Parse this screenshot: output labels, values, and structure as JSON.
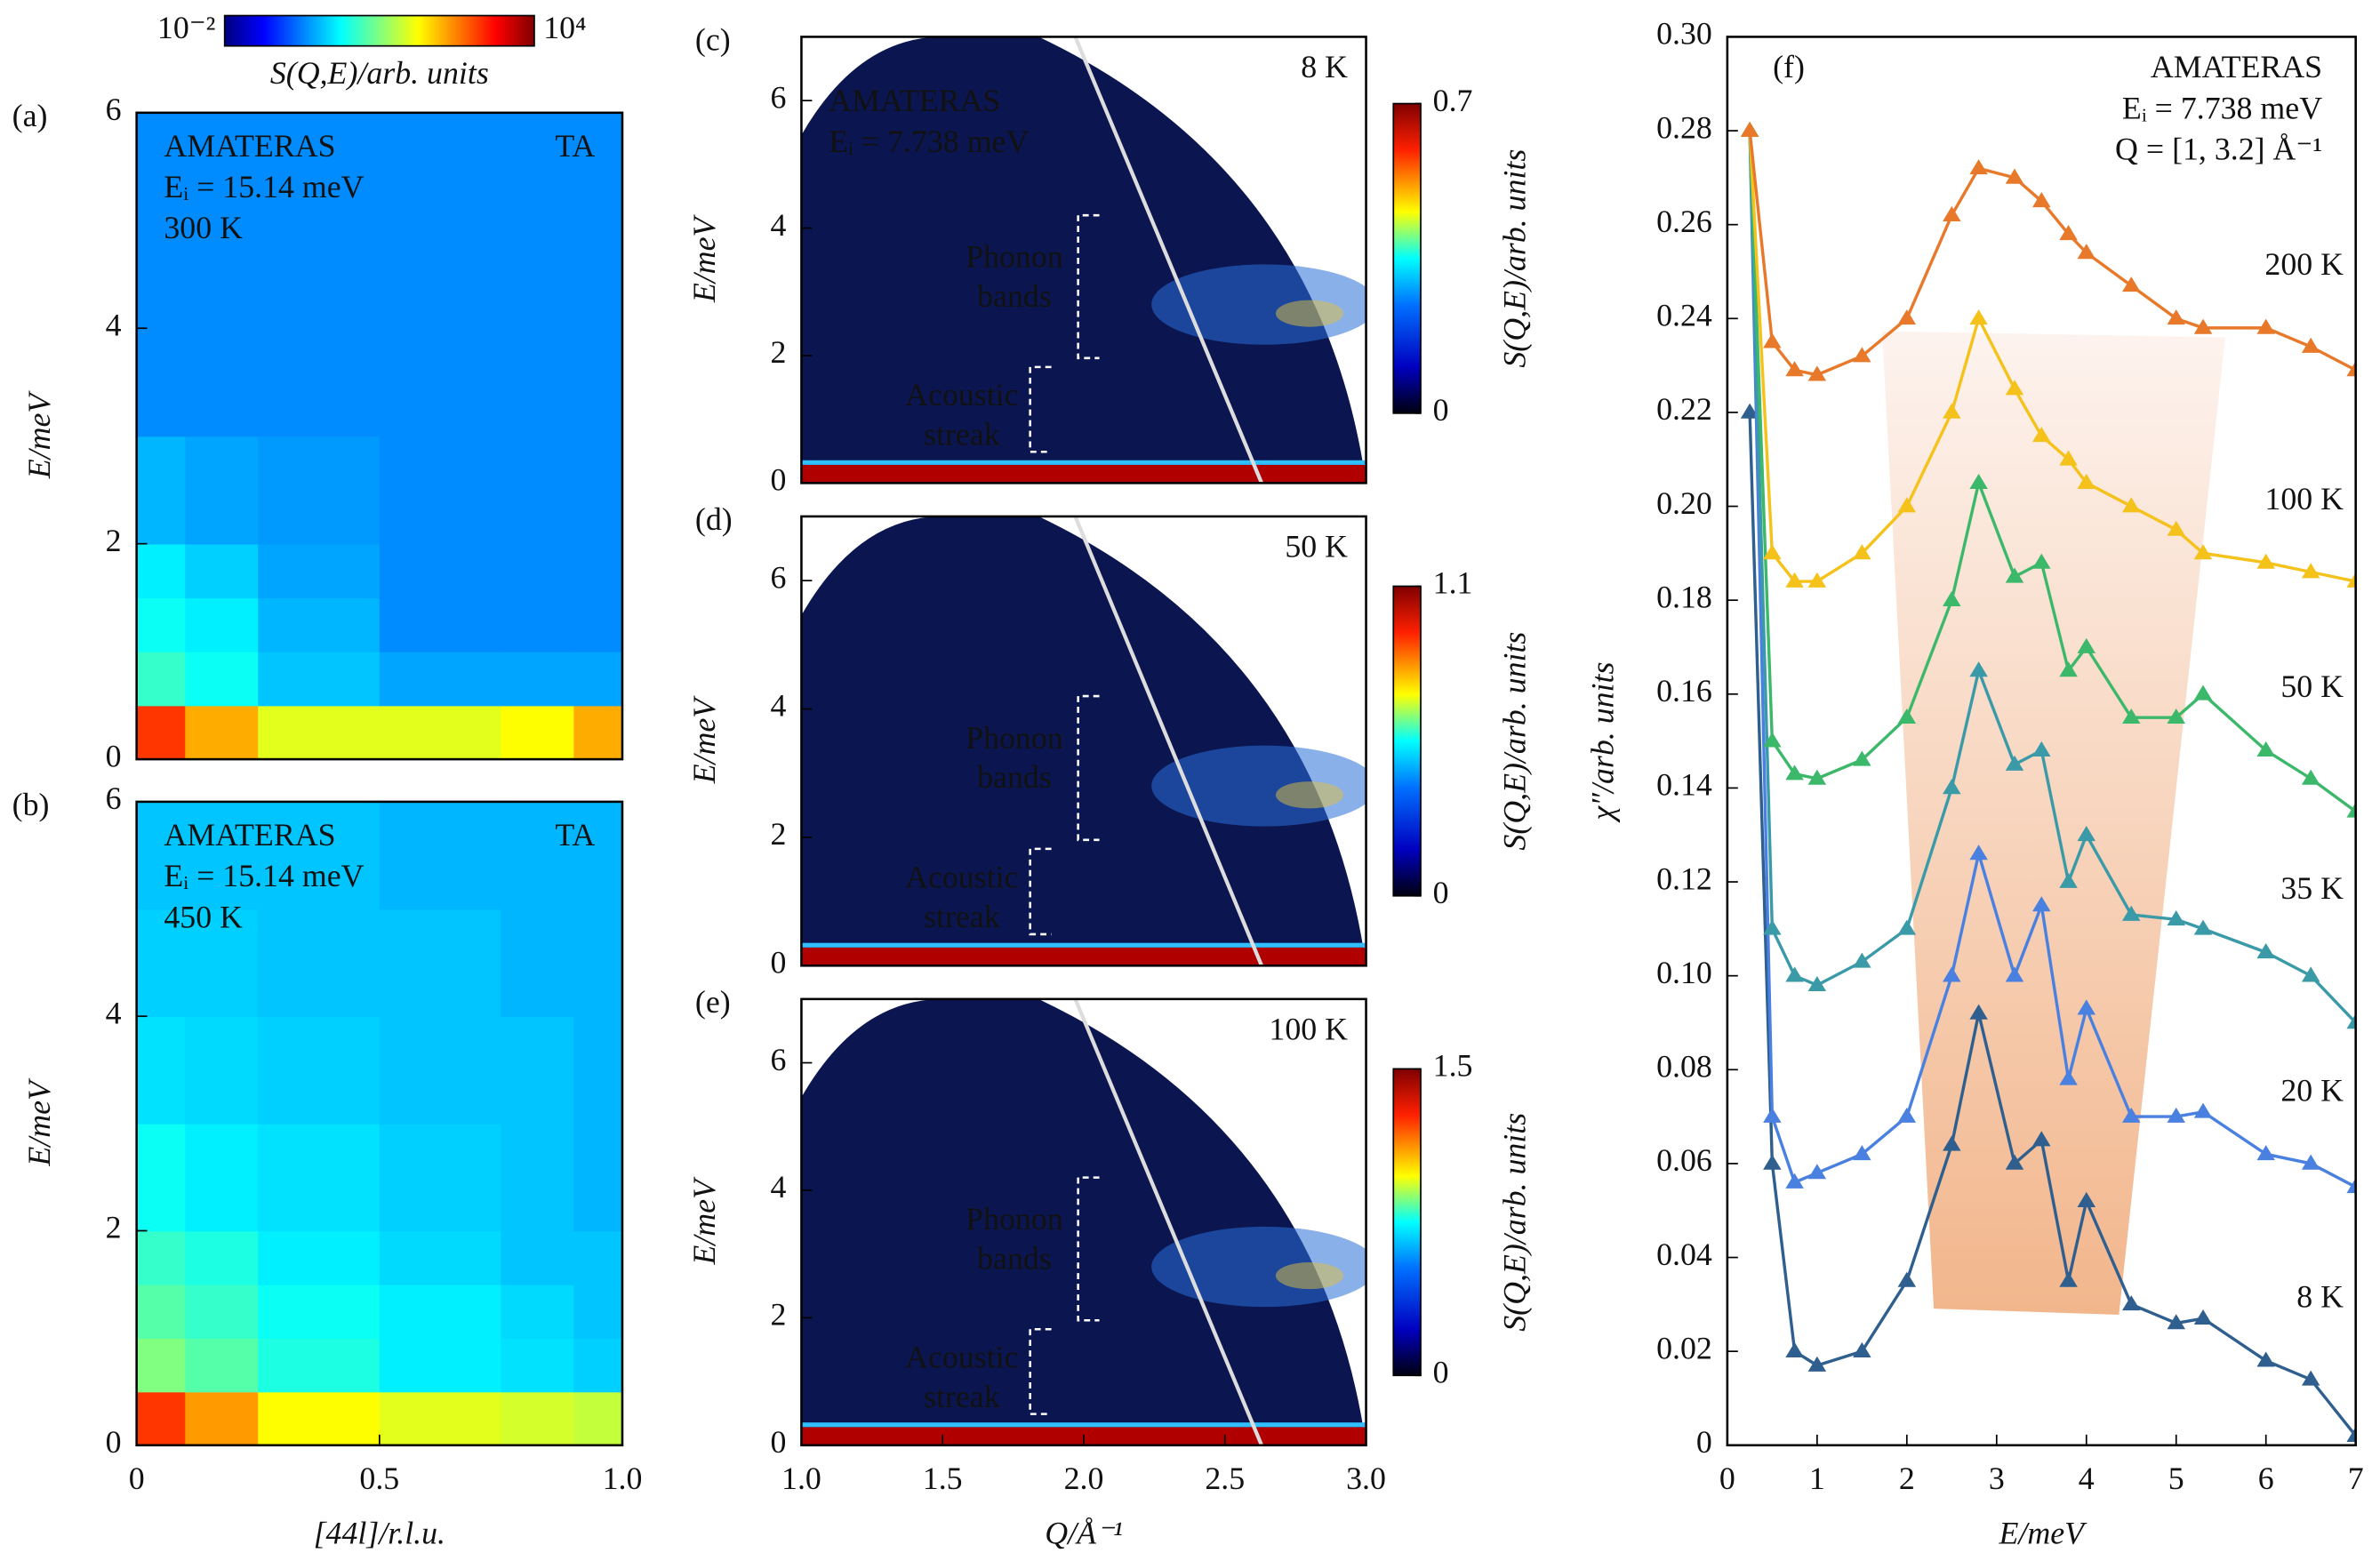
{
  "chart_data": [
    {
      "type": "heatmap",
      "panel_label": "(a)",
      "ylabel": "E/meV",
      "xlim": [
        0,
        1
      ],
      "ylim": [
        0,
        6
      ],
      "yticks": [
        0,
        2,
        4,
        6
      ],
      "xbins": [
        0,
        0.1,
        0.25,
        0.5,
        0.75,
        0.9,
        1
      ],
      "ybins": [
        0,
        0.5,
        1,
        1.5,
        2,
        3,
        4,
        5,
        6
      ],
      "values": [
        [
          2000,
          300,
          50,
          50,
          80,
          300
        ],
        [
          3,
          1.5,
          0.5,
          0.3,
          0.3,
          0.3
        ],
        [
          1.5,
          1,
          0.4,
          0.2,
          0.2,
          0.2
        ],
        [
          1,
          0.6,
          0.3,
          0.2,
          0.2,
          0.2
        ],
        [
          0.4,
          0.3,
          0.25,
          0.2,
          0.2,
          0.2
        ],
        [
          0.2,
          0.2,
          0.2,
          0.2,
          0.2,
          0.2
        ],
        [
          0.2,
          0.2,
          0.2,
          0.2,
          0.2,
          0.2
        ],
        [
          0.2,
          0.2,
          0.2,
          0.2,
          0.2,
          0.2
        ]
      ],
      "log_color": true,
      "zlim": [
        0.01,
        10000
      ],
      "zticks": [
        {
          "value": 0.01,
          "label": "10⁻²"
        },
        {
          "value": 10000,
          "label": "10⁴"
        }
      ],
      "zlabel": "S(Q,E)/arb. units",
      "annotations": [
        "AMATERAS",
        "Eᵢ = 15.14 meV",
        "300 K"
      ],
      "mode_label": "TA"
    },
    {
      "type": "heatmap",
      "panel_label": "(b)",
      "ylabel": "E/meV",
      "xlabel": "[44l]/r.l.u.",
      "xlim": [
        0,
        1
      ],
      "ylim": [
        0,
        6
      ],
      "yticks": [
        0,
        2,
        4,
        6
      ],
      "xticks": [
        0,
        0.5,
        {
          "value": 1,
          "label": "1.0"
        }
      ],
      "xbins": [
        0,
        0.1,
        0.25,
        0.5,
        0.75,
        0.9,
        1
      ],
      "ybins": [
        0,
        0.5,
        1,
        1.5,
        2,
        3,
        4,
        5,
        6
      ],
      "values": [
        [
          2000,
          400,
          80,
          50,
          40,
          30
        ],
        [
          10,
          5,
          2,
          1,
          0.8,
          0.6
        ],
        [
          5,
          3,
          1.5,
          1,
          0.7,
          0.5
        ],
        [
          3,
          2,
          1,
          0.7,
          0.5,
          0.5
        ],
        [
          1.5,
          1,
          0.8,
          0.6,
          0.5,
          0.4
        ],
        [
          0.8,
          0.7,
          0.6,
          0.5,
          0.5,
          0.4
        ],
        [
          0.6,
          0.6,
          0.5,
          0.5,
          0.4,
          0.4
        ],
        [
          0.5,
          0.5,
          0.5,
          0.4,
          0.4,
          0.4
        ]
      ],
      "log_color": true,
      "zlim": [
        0.01,
        10000
      ],
      "annotations": [
        "AMATERAS",
        "Eᵢ = 15.14 meV",
        "450 K"
      ],
      "mode_label": "TA"
    },
    {
      "type": "map",
      "panel_label": "(c)",
      "ylabel": "E/meV",
      "xlim": [
        1,
        3
      ],
      "ylim": [
        0,
        7
      ],
      "yticks": [
        0,
        2,
        4,
        6
      ],
      "zlim": [
        0,
        0.7
      ],
      "zticks": [
        0,
        0.7
      ],
      "zlabel": "S(Q,E)/arb. units",
      "temperature": "8 K",
      "annotations": [
        "AMATERAS",
        "Eᵢ = 7.738 meV"
      ],
      "phonon_label": [
        "Phonon",
        "bands"
      ],
      "streak_label": [
        "Acoustic",
        "streak"
      ]
    },
    {
      "type": "map",
      "panel_label": "(d)",
      "ylabel": "E/meV",
      "xlim": [
        1,
        3
      ],
      "ylim": [
        0,
        7
      ],
      "yticks": [
        0,
        2,
        4,
        6
      ],
      "zlim": [
        0,
        1.1
      ],
      "zticks": [
        0,
        1.1
      ],
      "zlabel": "S(Q,E)/arb. units",
      "temperature": "50 K",
      "phonon_label": [
        "Phonon",
        "bands"
      ],
      "streak_label": [
        "Acoustic",
        "streak"
      ]
    },
    {
      "type": "map",
      "panel_label": "(e)",
      "ylabel": "E/meV",
      "xlabel": "Q/Å⁻¹",
      "xlim": [
        1,
        3
      ],
      "ylim": [
        0,
        7
      ],
      "yticks": [
        0,
        2,
        4,
        6
      ],
      "xticks": [
        {
          "value": 1,
          "label": "1.0"
        },
        1.5,
        {
          "value": 2,
          "label": "2.0"
        },
        2.5,
        {
          "value": 3,
          "label": "3.0"
        }
      ],
      "zlim": [
        0,
        1.5
      ],
      "zticks": [
        0,
        1.5
      ],
      "zlabel": "S(Q,E)/arb. units",
      "temperature": "100 K",
      "phonon_label": [
        "Phonon",
        "bands"
      ],
      "streak_label": [
        "Acoustic",
        "streak"
      ]
    },
    {
      "type": "line",
      "panel_label": "(f)",
      "ylabel": "χ″/arb. units",
      "xlabel": "E/meV",
      "annotations": [
        "AMATERAS",
        "Eᵢ = 7.738 meV",
        "Q = [1, 3.2] Å⁻¹"
      ],
      "xlim": [
        0,
        7
      ],
      "ylim": [
        0,
        0.3
      ],
      "xticks": [
        0,
        1,
        2,
        3,
        4,
        5,
        6,
        7
      ],
      "yticks": [
        0,
        0.02,
        0.04,
        0.06,
        0.08,
        {
          "value": 0.1,
          "label": "0.10"
        },
        0.12,
        0.14,
        0.16,
        0.18,
        {
          "value": 0.2,
          "label": "0.20"
        },
        0.22,
        0.24,
        0.26,
        0.28,
        {
          "value": 0.3,
          "label": "0.30"
        }
      ],
      "x": [
        0.25,
        0.5,
        0.75,
        1,
        1.5,
        2,
        2.5,
        2.8,
        3.2,
        3.5,
        3.8,
        4,
        4.5,
        5,
        5.3,
        6,
        6.5,
        7
      ],
      "series": [
        {
          "name": "8 K",
          "color": "#2f5f8f",
          "values": [
            0.22,
            0.06,
            0.02,
            0.017,
            0.02,
            0.035,
            0.064,
            0.092,
            0.06,
            0.065,
            0.035,
            0.052,
            0.03,
            0.026,
            0.027,
            0.018,
            0.014,
            0.002
          ]
        },
        {
          "name": "20 K",
          "color": "#4a80e0",
          "values": [
            0.28,
            0.07,
            0.056,
            0.058,
            0.062,
            0.07,
            0.1,
            0.126,
            0.1,
            0.115,
            0.078,
            0.093,
            0.07,
            0.07,
            0.071,
            0.062,
            0.06,
            0.055
          ]
        },
        {
          "name": "35 K",
          "color": "#3a9aa8",
          "values": [
            0.28,
            0.11,
            0.1,
            0.098,
            0.103,
            0.11,
            0.14,
            0.165,
            0.145,
            0.148,
            0.12,
            0.13,
            0.113,
            0.112,
            0.11,
            0.105,
            0.1,
            0.09
          ]
        },
        {
          "name": "50 K",
          "color": "#3cb86b",
          "values": [
            0.28,
            0.15,
            0.143,
            0.142,
            0.146,
            0.155,
            0.18,
            0.205,
            0.185,
            0.188,
            0.165,
            0.17,
            0.155,
            0.155,
            0.16,
            0.148,
            0.142,
            0.135
          ]
        },
        {
          "name": "100 K",
          "color": "#f5c21b",
          "values": [
            0.28,
            0.19,
            0.184,
            0.184,
            0.19,
            0.2,
            0.22,
            0.24,
            0.225,
            0.215,
            0.21,
            0.205,
            0.2,
            0.195,
            0.19,
            0.188,
            0.186,
            0.184
          ]
        },
        {
          "name": "200 K",
          "color": "#e8792a",
          "values": [
            0.28,
            0.235,
            0.229,
            0.228,
            0.232,
            0.24,
            0.262,
            0.272,
            0.27,
            0.265,
            0.258,
            0.254,
            0.247,
            0.24,
            0.238,
            0.238,
            0.234,
            0.229
          ]
        }
      ]
    }
  ]
}
